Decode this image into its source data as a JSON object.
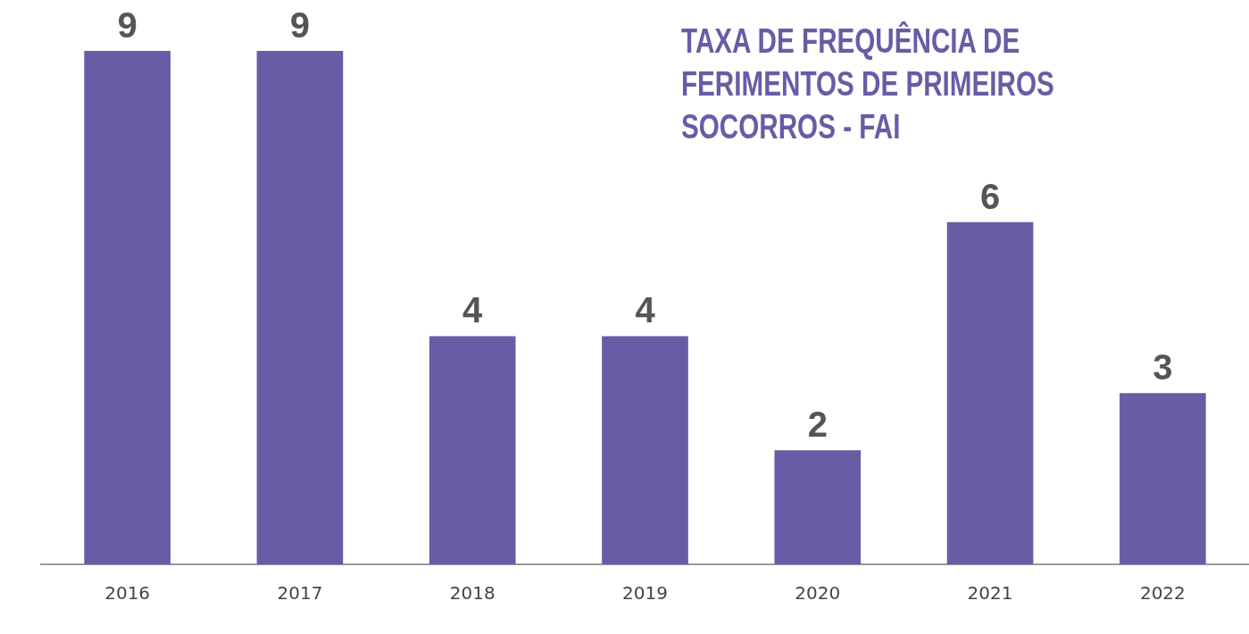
{
  "chart_data": {
    "type": "bar",
    "title": "TAXA DE FREQUÊNCIA DE FERIMENTOS DE PRIMEIROS SOCORROS - FAI",
    "categories": [
      "2016",
      "2017",
      "2018",
      "2019",
      "2020",
      "2021",
      "2022"
    ],
    "values": [
      9,
      9,
      4,
      4,
      2,
      6,
      3
    ],
    "color": "#6a5ba6",
    "ylim": [
      0,
      9
    ],
    "data_labels": true,
    "tick_labels": "x",
    "grid": false,
    "legend": false
  }
}
